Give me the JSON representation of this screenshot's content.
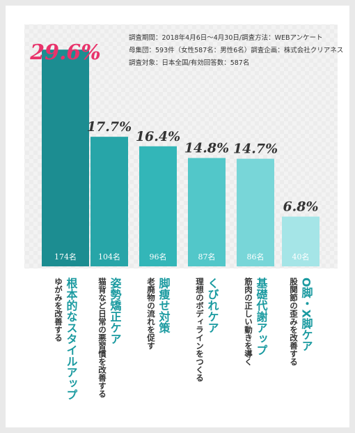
{
  "chart_data": {
    "type": "bar",
    "notes": [
      "調査期間：2018年4月6日〜4月30日/調査方法：WEBアンケート",
      "母集団：593件（女性587名：男性6名）調査企画：株式会社クリアネス",
      "調査対象：日本全国/有効回答数：587名"
    ],
    "categories": [
      {
        "title": "根本的なスタイルアップ",
        "subtitle": "ゆがみを改善する"
      },
      {
        "title": "姿勢矯正ケア",
        "subtitle": "猫背など日常の悪習慣を改善する"
      },
      {
        "title": "脚痩せ対策",
        "subtitle": "老廃物の流れを促す"
      },
      {
        "title": "くびれケア",
        "subtitle": "理想のボディラインをつくる"
      },
      {
        "title": "基礎代謝アップ",
        "subtitle": "筋肉の正しい動きを導く"
      },
      {
        "title": "O脚・X脚ケア",
        "subtitle": "股関節の歪みを改善する"
      }
    ],
    "values": [
      29.6,
      17.7,
      16.4,
      14.8,
      14.7,
      6.8
    ],
    "value_labels": [
      "29.6%",
      "17.7%",
      "16.4%",
      "14.8%",
      "14.7%",
      "6.8%"
    ],
    "counts": [
      "174名",
      "104名",
      "96名",
      "87名",
      "86名",
      "40名"
    ],
    "colors": [
      "#1c8d91",
      "#27a5a8",
      "#33b6b8",
      "#52c7c9",
      "#78d6d8",
      "#a5e5e7"
    ],
    "highlight_color": "#e8336b",
    "ylim": [
      0,
      30
    ]
  }
}
